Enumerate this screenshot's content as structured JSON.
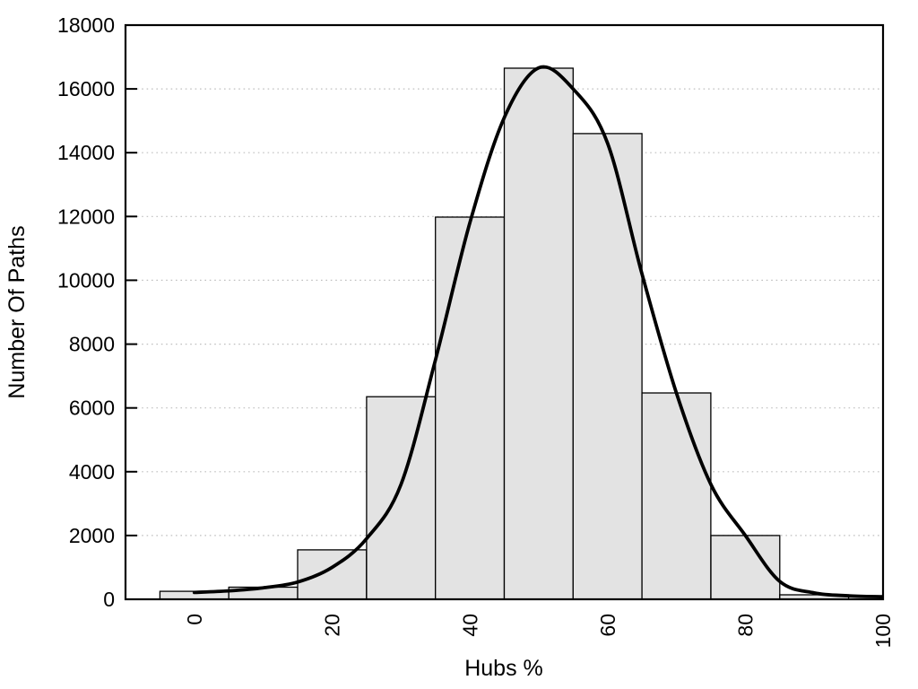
{
  "chart_data": {
    "type": "bar",
    "subtype": "histogram-with-fit-curve",
    "title": "",
    "xlabel": "Hubs %",
    "ylabel": "Number Of Paths",
    "xlim": [
      -10,
      100
    ],
    "ylim": [
      0,
      18000
    ],
    "xticks": [
      0,
      20,
      40,
      60,
      80,
      100
    ],
    "yticks": [
      0,
      2000,
      4000,
      6000,
      8000,
      10000,
      12000,
      14000,
      16000,
      18000
    ],
    "grid": "horizontal-dotted",
    "legend": "none",
    "bin_width": 10,
    "bars": {
      "centers": [
        0,
        10,
        20,
        30,
        40,
        50,
        60,
        70,
        80,
        90,
        100
      ],
      "values": [
        250,
        380,
        1550,
        6350,
        11980,
        16650,
        14600,
        6470,
        2000,
        140,
        110
      ]
    },
    "curve": {
      "x": [
        0,
        5,
        10,
        15,
        20,
        25,
        30,
        35,
        40,
        45,
        50,
        55,
        60,
        65,
        70,
        75,
        80,
        85,
        90,
        95,
        100
      ],
      "y": [
        215,
        265,
        360,
        540,
        1000,
        1900,
        3600,
        7500,
        11800,
        15100,
        16660,
        16000,
        14300,
        10200,
        6470,
        3600,
        2000,
        560,
        200,
        110,
        80
      ]
    },
    "colors": {
      "bar_fill": "#e3e3e3",
      "bar_border": "#000000",
      "curve": "#000000",
      "grid": "#bfbfbf",
      "axis": "#000000",
      "background": "#ffffff"
    }
  }
}
